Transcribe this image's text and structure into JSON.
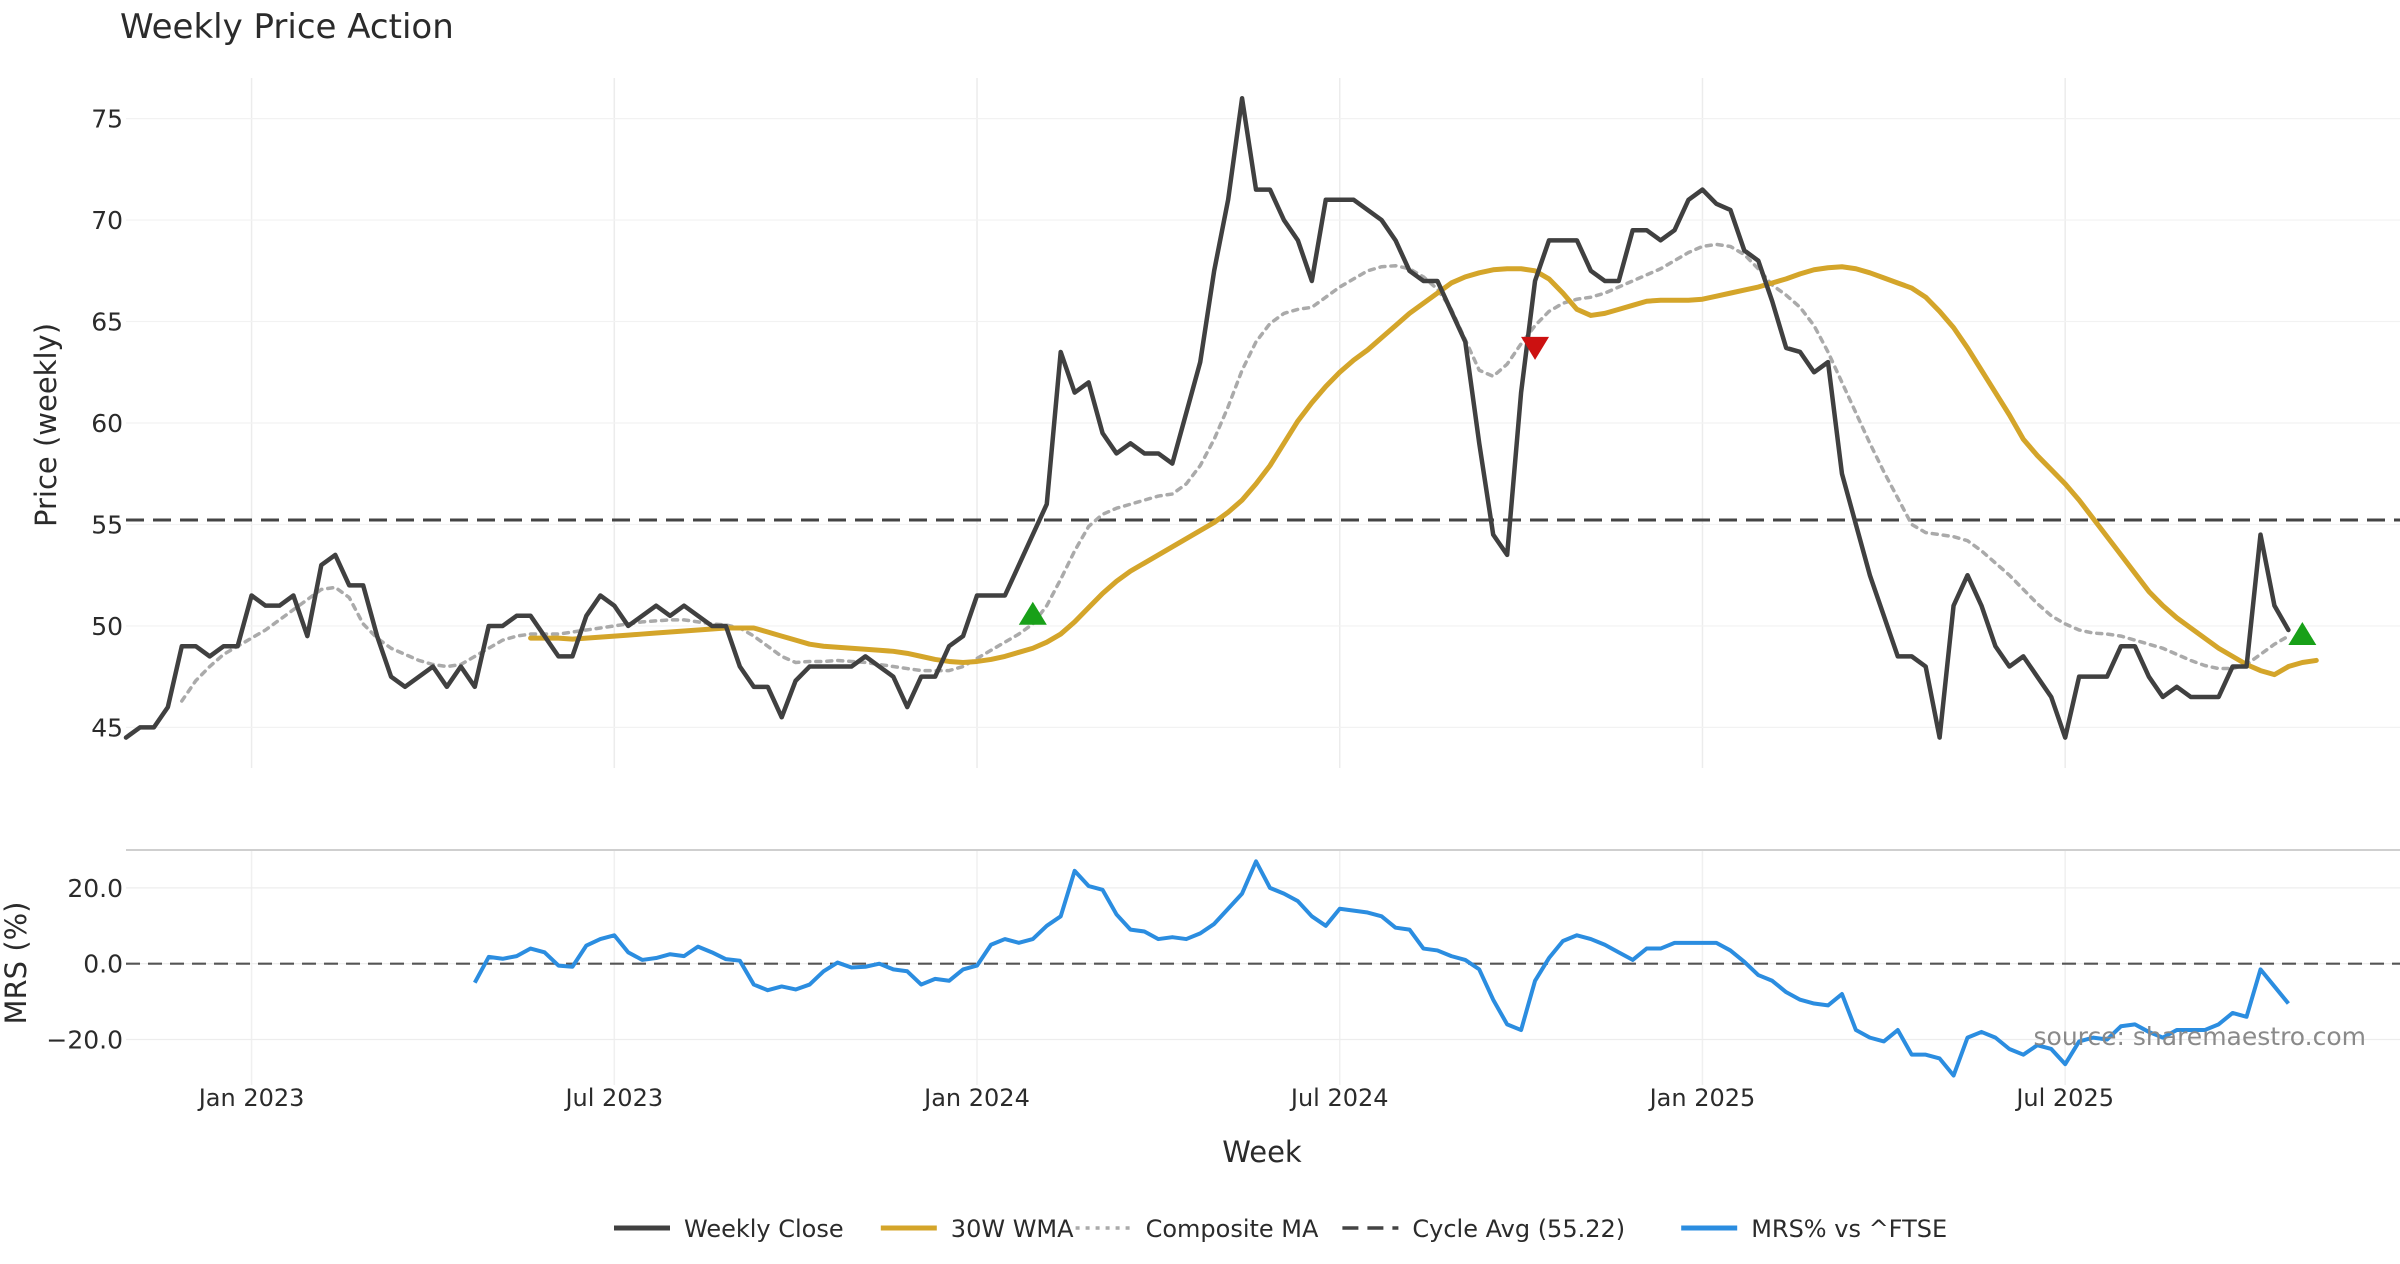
{
  "chart_data": {
    "type": "line",
    "title": "Weekly Price Action",
    "xlabel": "Week",
    "source": "source: sharemaestro.com",
    "x_ticks": [
      "Jan 2023",
      "Jul 2023",
      "Jan 2024",
      "Jul 2024",
      "Jan 2025",
      "Jul 2025"
    ],
    "x_tick_weeks": [
      3,
      29,
      55,
      81,
      107,
      133
    ],
    "x_range": [
      -6,
      157
    ],
    "price_panel": {
      "ylabel": "Price (weekly)",
      "ylim": [
        43,
        77
      ],
      "y_ticks": [
        "45",
        "50",
        "55",
        "60",
        "65",
        "70",
        "75"
      ],
      "y_tick_values": [
        45,
        50,
        55,
        60,
        65,
        70,
        75
      ],
      "cycle_avg": 55.22,
      "series": [
        {
          "name": "Weekly Close",
          "color": "#404040",
          "start_week": -6,
          "values": [
            44.5,
            45,
            45,
            46,
            49,
            49,
            48.5,
            49,
            49,
            51.5,
            51,
            51,
            51.5,
            49.5,
            53,
            53.5,
            52,
            52,
            49.5,
            47.5,
            47,
            47.5,
            48,
            47,
            48,
            47,
            50,
            50,
            50.5,
            50.5,
            49.5,
            48.5,
            48.5,
            50.5,
            51.5,
            51,
            50,
            50.5,
            51,
            50.5,
            51,
            50.5,
            50,
            50,
            48,
            47,
            47,
            45.5,
            47.3,
            48,
            48,
            48,
            48,
            48.5,
            48,
            47.5,
            46,
            47.5,
            47.5,
            49,
            49.5,
            51.5,
            51.5,
            51.5,
            53,
            54.5,
            56,
            63.5,
            61.5,
            62,
            59.5,
            58.5,
            59,
            58.5,
            58.5,
            58,
            60.5,
            63,
            67.5,
            71,
            76,
            71.5,
            71.5,
            70,
            69,
            67,
            71,
            71,
            71,
            70.5,
            70,
            69,
            67.5,
            67,
            67,
            65.5,
            64,
            59,
            54.5,
            53.5,
            61.5,
            67,
            69,
            69,
            69,
            67.5,
            67,
            67,
            69.5,
            69.5,
            69,
            69.5,
            71,
            71.5,
            70.8,
            70.5,
            68.5,
            68,
            66,
            63.7,
            63.5,
            62.5,
            63,
            57.5,
            55,
            52.5,
            50.5,
            48.5,
            48.5,
            48,
            44.5,
            51,
            52.5,
            51,
            49,
            48,
            48.5,
            47.5,
            46.5,
            44.5,
            47.5,
            47.5,
            47.5,
            49,
            49,
            47.5,
            46.5,
            47,
            46.5,
            46.5,
            46.5,
            48,
            48,
            54.5,
            51,
            49.8
          ]
        },
        {
          "name": "30W WMA",
          "color": "#d4a52a",
          "start_week": 23,
          "values": [
            49.4,
            49.4,
            49.4,
            49.35,
            49.4,
            49.45,
            49.5,
            49.55,
            49.6,
            49.65,
            49.7,
            49.75,
            49.8,
            49.85,
            49.9,
            49.9,
            49.9,
            49.7,
            49.5,
            49.3,
            49.1,
            49,
            48.95,
            48.9,
            48.85,
            48.8,
            48.75,
            48.65,
            48.5,
            48.35,
            48.25,
            48.2,
            48.25,
            48.35,
            48.5,
            48.7,
            48.9,
            49.2,
            49.6,
            50.2,
            50.9,
            51.6,
            52.2,
            52.7,
            53.1,
            53.5,
            53.9,
            54.3,
            54.7,
            55.1,
            55.6,
            56.2,
            57,
            57.9,
            59,
            60.1,
            61,
            61.8,
            62.5,
            63.1,
            63.6,
            64.2,
            64.8,
            65.4,
            65.9,
            66.4,
            66.9,
            67.2,
            67.4,
            67.55,
            67.6,
            67.6,
            67.5,
            67.1,
            66.4,
            65.6,
            65.3,
            65.4,
            65.6,
            65.8,
            66,
            66.05,
            66.05,
            66.05,
            66.1,
            66.25,
            66.4,
            66.55,
            66.7,
            66.9,
            67.1,
            67.35,
            67.55,
            67.65,
            67.7,
            67.6,
            67.4,
            67.15,
            66.9,
            66.65,
            66.2,
            65.5,
            64.7,
            63.7,
            62.6,
            61.5,
            60.4,
            59.2,
            58.4,
            57.7,
            57,
            56.2,
            55.3,
            54.4,
            53.5,
            52.6,
            51.7,
            51,
            50.4,
            49.9,
            49.4,
            48.9,
            48.5,
            48.1,
            47.8,
            47.6,
            48,
            48.2,
            48.3
          ]
        },
        {
          "name": "Composite MA",
          "color": "#aaaaaa",
          "start_week": -2,
          "values": [
            46.3,
            47.3,
            48,
            48.6,
            49,
            49.4,
            49.8,
            50.3,
            50.8,
            51.3,
            51.8,
            51.9,
            51.4,
            50.1,
            49.4,
            48.9,
            48.6,
            48.3,
            48.1,
            48,
            48.1,
            48.5,
            48.9,
            49.3,
            49.5,
            49.6,
            49.6,
            49.6,
            49.7,
            49.8,
            49.9,
            50,
            50.1,
            50.2,
            50.25,
            50.3,
            50.3,
            50.2,
            50.1,
            50.05,
            49.9,
            49.5,
            49,
            48.5,
            48.2,
            48.25,
            48.25,
            48.3,
            48.25,
            48.2,
            48.1,
            48,
            47.9,
            47.8,
            47.8,
            47.8,
            48,
            48.4,
            48.8,
            49.2,
            49.6,
            50.1,
            51,
            52.3,
            53.7,
            54.9,
            55.5,
            55.8,
            56,
            56.2,
            56.4,
            56.5,
            57,
            57.9,
            59.2,
            60.8,
            62.6,
            64,
            64.9,
            65.4,
            65.6,
            65.7,
            66.2,
            66.7,
            67.1,
            67.5,
            67.7,
            67.75,
            67.6,
            67.2,
            66.6,
            65.6,
            64.1,
            62.6,
            62.3,
            62.9,
            63.9,
            64.8,
            65.5,
            65.9,
            66.1,
            66.2,
            66.4,
            66.7,
            67,
            67.3,
            67.6,
            68,
            68.4,
            68.7,
            68.8,
            68.7,
            68.3,
            67.6,
            66.8,
            66.3,
            65.7,
            64.8,
            63.5,
            62,
            60.5,
            59,
            57.6,
            56.3,
            55,
            54.6,
            54.5,
            54.4,
            54.2,
            53.7,
            53.1,
            52.5,
            51.8,
            51.1,
            50.5,
            50.1,
            49.8,
            49.65,
            49.6,
            49.5,
            49.3,
            49.1,
            48.9,
            48.6,
            48.3,
            48.05,
            47.9,
            47.9,
            48.1,
            48.6,
            49.1,
            49.5
          ]
        }
      ],
      "markers": [
        {
          "type": "buy",
          "week": 59,
          "value": 50.6,
          "color": "#18a018"
        },
        {
          "type": "sell",
          "week": 95,
          "value": 63.7,
          "color": "#cc1111"
        },
        {
          "type": "buy",
          "week": 150,
          "value": 49.6,
          "color": "#18a018"
        }
      ]
    },
    "mrs_panel": {
      "ylabel": "MRS (%)",
      "ylim": [
        -32,
        30
      ],
      "y_ticks": [
        "20.0",
        "0.0",
        "−20.0"
      ],
      "y_tick_values": [
        20,
        0,
        -20
      ],
      "series": [
        {
          "name": "MRS% vs ^FTSE",
          "color": "#2b8de0",
          "start_week": 19,
          "values": [
            -5,
            1.8,
            1.3,
            2,
            4,
            3,
            -0.5,
            -0.8,
            4.8,
            6.5,
            7.5,
            3,
            1,
            1.5,
            2.5,
            2,
            4.5,
            3,
            1.2,
            0.8,
            -5.5,
            -7,
            -6,
            -6.8,
            -5.5,
            -2,
            0.3,
            -1,
            -0.8,
            0,
            -1.5,
            -2,
            -5.5,
            -4,
            -4.5,
            -1.5,
            -0.5,
            5,
            6.5,
            5.5,
            6.5,
            10,
            12.5,
            24.5,
            20.5,
            19.5,
            13,
            9,
            8.5,
            6.5,
            7,
            6.5,
            8,
            10.5,
            14.5,
            18.5,
            27,
            20,
            18.5,
            16.5,
            12.5,
            10,
            14.5,
            14,
            13.5,
            12.5,
            9.5,
            9,
            4,
            3.5,
            2,
            1,
            -1.5,
            -9.5,
            -16,
            -17.5,
            -4.5,
            1.5,
            6,
            7.5,
            6.5,
            5,
            3,
            1,
            4,
            4,
            5.5,
            5.5,
            5.5,
            5.5,
            3.5,
            0.5,
            -3,
            -4.5,
            -7.5,
            -9.5,
            -10.5,
            -11,
            -8,
            -17.5,
            -19.5,
            -20.5,
            -17.5,
            -24,
            -24,
            -25,
            -29.5,
            -19.5,
            -18,
            -19.5,
            -22.5,
            -24,
            -21.5,
            -22.5,
            -26.5,
            -20.5,
            -19.5,
            -20,
            -16.5,
            -16,
            -18,
            -19.5,
            -17.5,
            -17.5,
            -17.5,
            -16,
            -13,
            -14,
            -1.5,
            -6,
            -10.5
          ]
        }
      ]
    },
    "legend": [
      {
        "label": "Weekly Close",
        "style": "solid",
        "color": "#404040"
      },
      {
        "label": "30W WMA",
        "style": "solid",
        "color": "#d4a52a"
      },
      {
        "label": "Composite MA",
        "style": "dotted",
        "color": "#aaaaaa"
      },
      {
        "label": "Cycle Avg (55.22)",
        "style": "dashed",
        "color": "#444444"
      },
      {
        "label": "MRS% vs ^FTSE",
        "style": "solid",
        "color": "#2b8de0"
      }
    ]
  }
}
